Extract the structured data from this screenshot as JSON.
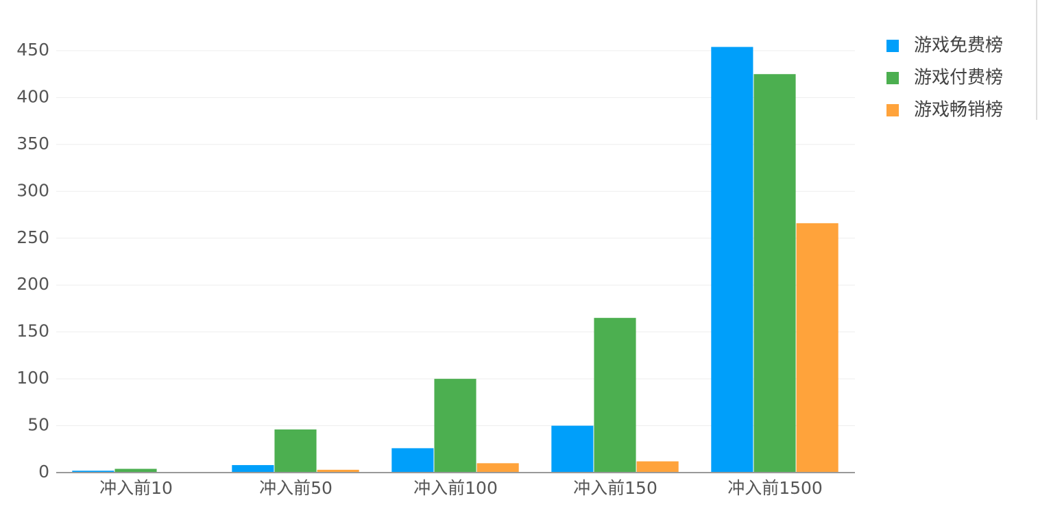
{
  "chart_data": {
    "type": "bar",
    "categories": [
      "冲入前10",
      "冲入前50",
      "冲入前100",
      "冲入前150",
      "冲入前1500"
    ],
    "series": [
      {
        "name": "游戏免费榜",
        "color": "#009ffa",
        "values": [
          2,
          8,
          26,
          50,
          454
        ]
      },
      {
        "name": "游戏付费榜",
        "color": "#4caf50",
        "values": [
          4,
          46,
          100,
          165,
          425
        ]
      },
      {
        "name": "游戏畅销榜",
        "color": "#ffa33b",
        "values": [
          0,
          3,
          10,
          12,
          266
        ]
      }
    ],
    "ylim": [
      0,
      450
    ],
    "yticks": [
      0,
      50,
      100,
      150,
      200,
      250,
      300,
      350,
      400,
      450
    ],
    "grid": true
  }
}
